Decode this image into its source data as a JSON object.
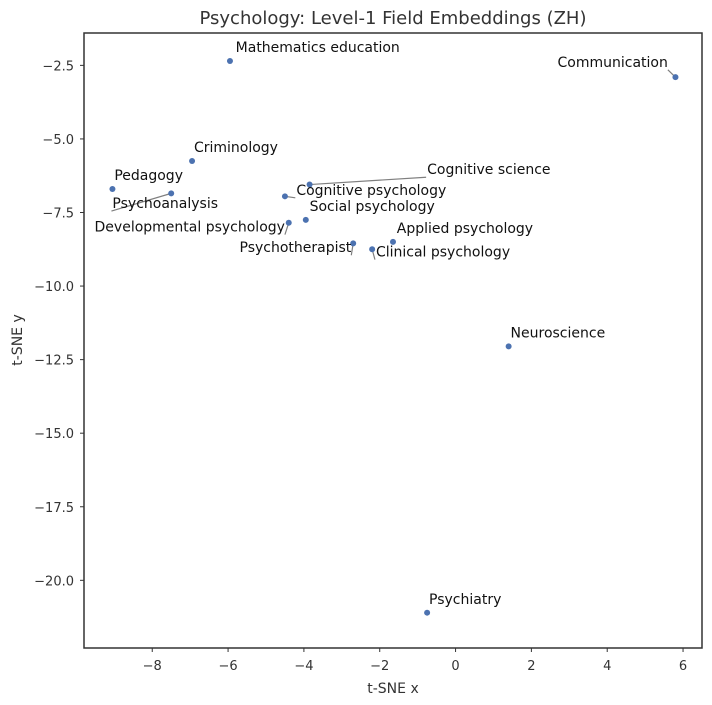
{
  "chart_data": {
    "type": "scatter",
    "title": "Psychology: Level-1 Field Embeddings (ZH)",
    "xlabel": "t-SNE x",
    "ylabel": "t-SNE y",
    "xlim": [
      -9.8,
      6.5
    ],
    "ylim": [
      -22.3,
      -1.4
    ],
    "xticks": [
      -8,
      -6,
      -4,
      -2,
      0,
      2,
      4,
      6
    ],
    "xtick_labels": [
      "−8",
      "−6",
      "−4",
      "−2",
      "0",
      "2",
      "4",
      "6"
    ],
    "yticks": [
      -2.5,
      -5.0,
      -7.5,
      -10.0,
      -12.5,
      -15.0,
      -17.5,
      -20.0
    ],
    "ytick_labels": [
      "−2.5",
      "−5.0",
      "−7.5",
      "−10.0",
      "−12.5",
      "−15.0",
      "−17.5",
      "−20.0"
    ],
    "grid": false,
    "marker_color": "#4c72b0",
    "points": [
      {
        "label": "Mathematics education",
        "x": -5.95,
        "y": -2.35,
        "lx": -5.8,
        "ly": -2.05
      },
      {
        "label": "Communication",
        "x": 5.8,
        "y": -2.9,
        "lx": 5.6,
        "ly": -2.55,
        "anchor": "end"
      },
      {
        "label": "Criminology",
        "x": -6.95,
        "y": -5.75,
        "lx": -6.9,
        "ly": -5.45
      },
      {
        "label": "Pedagogy",
        "x": -9.05,
        "y": -6.7,
        "lx": -9.0,
        "ly": -6.4
      },
      {
        "label": "Psychoanalysis",
        "x": -7.5,
        "y": -6.85,
        "lx": -9.05,
        "ly": -7.35
      },
      {
        "label": "Cognitive science",
        "x": -3.85,
        "y": -6.55,
        "lx": -0.75,
        "ly": -6.2
      },
      {
        "label": "Cognitive psychology",
        "x": -4.5,
        "y": -6.95,
        "lx": -4.2,
        "ly": -6.9
      },
      {
        "label": "Social psychology",
        "x": -3.95,
        "y": -7.75,
        "lx": -3.85,
        "ly": -7.45
      },
      {
        "label": "Developmental psychology",
        "x": -4.4,
        "y": -7.85,
        "lx": -4.5,
        "ly": -8.15,
        "anchor": "end"
      },
      {
        "label": "Applied psychology",
        "x": -1.65,
        "y": -8.5,
        "lx": -1.55,
        "ly": -8.2
      },
      {
        "label": "Psychotherapist",
        "x": -2.7,
        "y": -8.55,
        "lx": -2.75,
        "ly": -8.85,
        "anchor": "end"
      },
      {
        "label": "Clinical psychology",
        "x": -2.2,
        "y": -8.75,
        "lx": -2.1,
        "ly": -9.0
      },
      {
        "label": "Neuroscience",
        "x": 1.4,
        "y": -12.05,
        "lx": 1.45,
        "ly": -11.75
      },
      {
        "label": "Psychiatry",
        "x": -0.75,
        "y": -21.1,
        "lx": -0.7,
        "ly": -20.8
      }
    ]
  }
}
